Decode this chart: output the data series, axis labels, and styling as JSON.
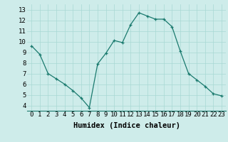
{
  "x": [
    0,
    1,
    2,
    3,
    4,
    5,
    6,
    7,
    8,
    9,
    10,
    11,
    12,
    13,
    14,
    15,
    16,
    17,
    18,
    19,
    20,
    21,
    22,
    23
  ],
  "y": [
    9.6,
    8.8,
    7.0,
    6.5,
    6.0,
    5.4,
    4.7,
    3.8,
    7.9,
    8.9,
    10.1,
    9.9,
    11.6,
    12.7,
    12.4,
    12.1,
    12.1,
    11.4,
    9.1,
    7.0,
    6.4,
    5.8,
    5.1,
    4.9
  ],
  "xlabel": "Humidex (Indice chaleur)",
  "xlim": [
    -0.5,
    23.5
  ],
  "ylim": [
    3.5,
    13.5
  ],
  "yticks": [
    4,
    5,
    6,
    7,
    8,
    9,
    10,
    11,
    12,
    13
  ],
  "xticks": [
    0,
    1,
    2,
    3,
    4,
    5,
    6,
    7,
    8,
    9,
    10,
    11,
    12,
    13,
    14,
    15,
    16,
    17,
    18,
    19,
    20,
    21,
    22,
    23
  ],
  "line_color": "#1a7a6e",
  "marker": "+",
  "bg_color": "#ceecea",
  "grid_color": "#a8d8d4",
  "tick_label_fontsize": 6.5,
  "xlabel_fontsize": 7.5
}
